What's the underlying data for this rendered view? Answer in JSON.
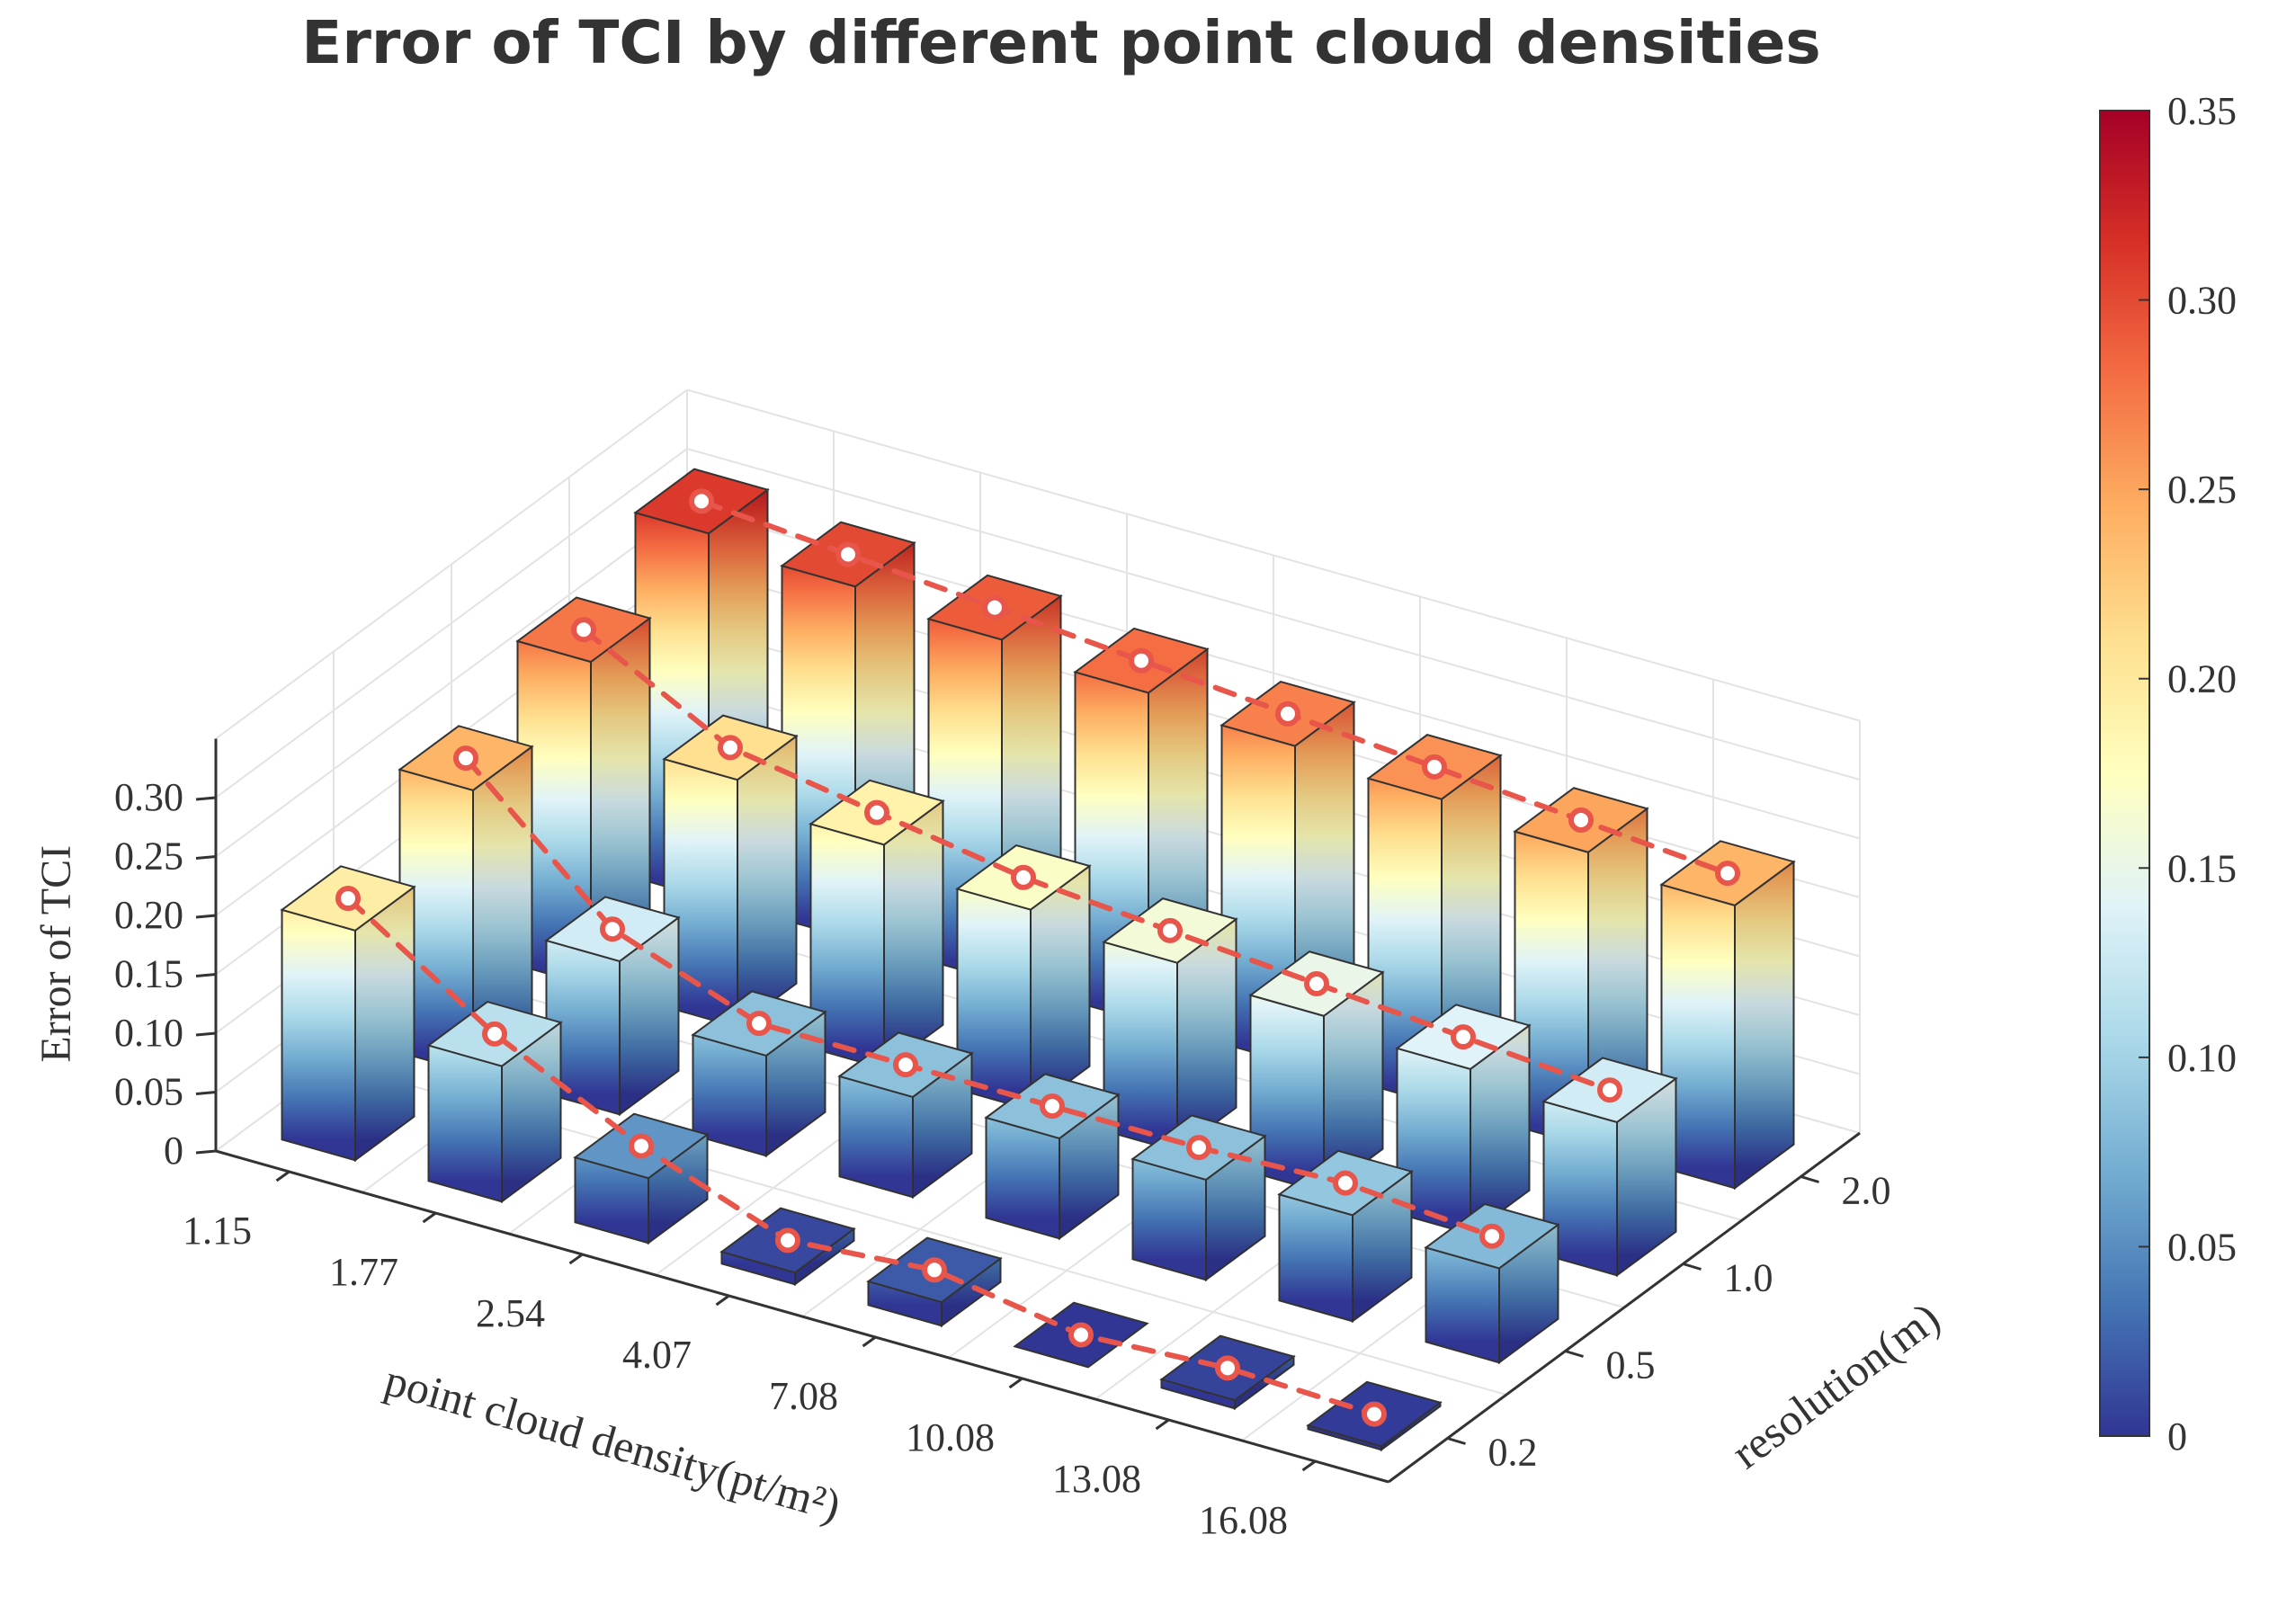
{
  "chart_data": {
    "type": "bar3d",
    "title": "Error of TCI by different point cloud densities",
    "xlabel": "point cloud density(pt/m²)",
    "ylabel": "resolution(m)",
    "zlabel": "Error of  TCI",
    "categories": [
      "1.15",
      "1.77",
      "2.54",
      "4.07",
      "7.08",
      "10.08",
      "13.08",
      "16.08"
    ],
    "series": [
      {
        "name": "0.2",
        "values": [
          0.195,
          0.115,
          0.055,
          0.01,
          0.02,
          0.0,
          0.007,
          0.003
        ]
      },
      {
        "name": "0.5",
        "values": [
          0.24,
          0.13,
          0.085,
          0.085,
          0.085,
          0.085,
          0.09,
          0.08
        ]
      },
      {
        "name": "1.0",
        "values": [
          0.275,
          0.21,
          0.19,
          0.17,
          0.16,
          0.15,
          0.14,
          0.13
        ]
      },
      {
        "name": "2.0",
        "values": [
          0.31,
          0.3,
          0.29,
          0.28,
          0.27,
          0.26,
          0.25,
          0.24
        ]
      }
    ],
    "zlim": [
      0,
      0.35
    ],
    "z_ticks": [
      "0",
      "0.05",
      "0.10",
      "0.15",
      "0.20",
      "0.25",
      "0.30"
    ],
    "colorbar": {
      "ticks": [
        "0",
        "0.05",
        "0.10",
        "0.15",
        "0.20",
        "0.25",
        "0.30",
        "0.35"
      ],
      "colors": [
        "#313695",
        "#4575b4",
        "#74add1",
        "#abd9e9",
        "#e0f3f8",
        "#ffffbf",
        "#fee090",
        "#fdae61",
        "#f46d43",
        "#d73027",
        "#a50026"
      ]
    },
    "trend_line_color": "#e8554a",
    "grid": true
  }
}
